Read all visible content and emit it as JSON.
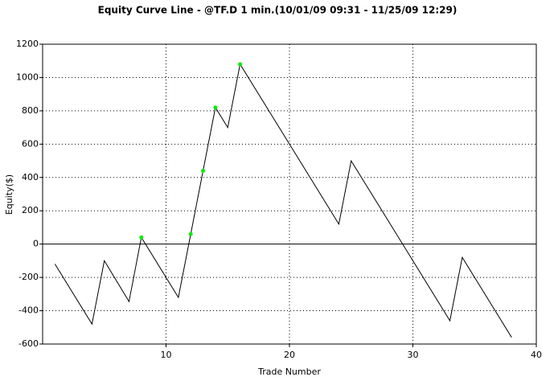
{
  "chart_data": {
    "type": "line",
    "title": "Equity Curve Line - @TF.D 1 min.(10/01/09 09:31 - 11/25/09 12:29)",
    "x_label": "Trade Number",
    "y_label": "Equity($)",
    "series": [
      {
        "color": "#000000",
        "x": [
          1,
          4,
          5,
          7,
          8,
          11,
          12,
          13,
          14,
          15,
          16,
          24,
          25,
          33,
          34,
          38
        ],
        "values": [
          -120,
          -480,
          -100,
          -345,
          40,
          -320,
          60,
          440,
          820,
          700,
          1080,
          120,
          500,
          -460,
          -80,
          -560
        ]
      }
    ],
    "markers": {
      "color": "#00ee00",
      "x": [
        8,
        12,
        13,
        14,
        16
      ],
      "values": [
        40,
        60,
        440,
        820,
        1080
      ]
    },
    "xlim": [
      0,
      40
    ],
    "xticks": [
      10,
      20,
      30,
      40
    ],
    "ylim": [
      -600,
      1200
    ],
    "yticks": [
      -600,
      -400,
      -200,
      0,
      200,
      400,
      600,
      800,
      1000,
      1200
    ],
    "grid": true
  }
}
